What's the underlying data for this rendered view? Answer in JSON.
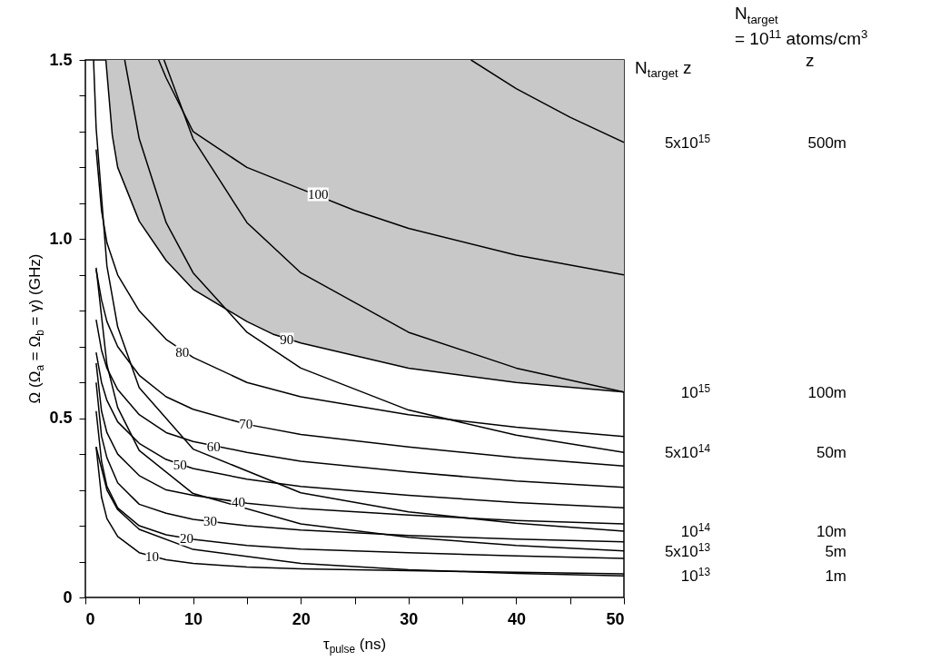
{
  "chart_data": {
    "type": "line",
    "xlabel": "τ$_{pulse}$     (ns)",
    "ylabel": "Ω  (Ω$_{a}$ = Ω$_{b}$ = γ)    (GHz)",
    "legend_title": "N$_{target}$ z",
    "xlim": [
      0,
      50
    ],
    "ylim": [
      0,
      1.5
    ],
    "xticks": [
      0,
      {
        "value": 5,
        "label": null
      },
      10,
      {
        "value": 15,
        "label": null
      },
      20,
      {
        "value": 25,
        "label": null
      },
      30,
      {
        "value": 35,
        "label": null
      },
      40,
      {
        "value": 45,
        "label": null
      },
      50
    ],
    "yticks": [
      0,
      {
        "value": 0.1,
        "label": null
      },
      {
        "value": 0.2,
        "label": null
      },
      {
        "value": 0.3,
        "label": null
      },
      {
        "value": 0.4,
        "label": null
      },
      0.5,
      {
        "value": 0.6,
        "label": null
      },
      {
        "value": 0.7,
        "label": null
      },
      {
        "value": 0.8,
        "label": null
      },
      {
        "value": 0.9,
        "label": null
      },
      {
        "value": 1,
        "label": "1.0"
      },
      {
        "value": 1.1,
        "label": null
      },
      {
        "value": 1.2,
        "label": null
      },
      {
        "value": 1.3,
        "label": null
      },
      {
        "value": 1.4,
        "label": null
      },
      1.5
    ],
    "series": [
      {
        "color": "#000000",
        "x": [
          1,
          1.5,
          2,
          3,
          5,
          7.5,
          10,
          15,
          20,
          30,
          40,
          50
        ],
        "values": [
          0.42,
          0.28,
          0.22,
          0.17,
          0.125,
          0.105,
          0.095,
          0.085,
          0.08,
          0.075,
          0.07,
          0.066
        ]
      },
      {
        "color": "#000000",
        "x": [
          1,
          1.5,
          2,
          3,
          5,
          7.5,
          10,
          15,
          20,
          30,
          40,
          50
        ],
        "values": [
          0.52,
          0.38,
          0.31,
          0.25,
          0.2,
          0.175,
          0.162,
          0.145,
          0.135,
          0.125,
          0.116,
          0.109
        ]
      },
      {
        "color": "#000000",
        "x": [
          1,
          1.5,
          2,
          3,
          5,
          7.5,
          10,
          15,
          20,
          30,
          40,
          50
        ],
        "values": [
          0.6,
          0.45,
          0.39,
          0.32,
          0.26,
          0.235,
          0.218,
          0.2,
          0.188,
          0.173,
          0.163,
          0.155
        ]
      },
      {
        "color": "#000000",
        "x": [
          1,
          1.5,
          2,
          3,
          5,
          7.5,
          10,
          15,
          20,
          30,
          40,
          50
        ],
        "values": [
          0.654,
          0.52,
          0.46,
          0.4,
          0.34,
          0.3,
          0.285,
          0.263,
          0.248,
          0.23,
          0.215,
          0.205
        ]
      },
      {
        "color": "#000000",
        "x": [
          1,
          1.5,
          2,
          3,
          5,
          7.5,
          10,
          15,
          20,
          30,
          40,
          50
        ],
        "values": [
          0.684,
          0.6,
          0.55,
          0.49,
          0.43,
          0.385,
          0.36,
          0.33,
          0.31,
          0.285,
          0.265,
          0.25
        ]
      },
      {
        "color": "#000000",
        "x": [
          1,
          1.5,
          2,
          3,
          5,
          7.5,
          10,
          15,
          20,
          30,
          40,
          50
        ],
        "values": [
          0.775,
          0.69,
          0.64,
          0.58,
          0.51,
          0.46,
          0.435,
          0.405,
          0.38,
          0.35,
          0.325,
          0.307
        ]
      },
      {
        "color": "#000000",
        "x": [
          1,
          1.5,
          2,
          3,
          5,
          7.5,
          10,
          15,
          20,
          30,
          40,
          50
        ],
        "values": [
          0.915,
          0.83,
          0.77,
          0.7,
          0.62,
          0.56,
          0.525,
          0.483,
          0.455,
          0.42,
          0.39,
          0.367
        ]
      },
      {
        "color": "#000000",
        "x": [
          1,
          1.5,
          2,
          3,
          5,
          7.5,
          10,
          15,
          20,
          30,
          40,
          50
        ],
        "values": [
          1.25,
          1.08,
          0.99,
          0.9,
          0.8,
          0.72,
          0.67,
          0.6,
          0.56,
          0.51,
          0.475,
          0.449
        ]
      },
      {
        "color": "#000000",
        "x": [
          1.9,
          2.5,
          3,
          5,
          7.5,
          10,
          15,
          17.4,
          20,
          30,
          40,
          50
        ],
        "values": [
          1.5,
          1.29,
          1.2,
          1.05,
          0.94,
          0.86,
          0.77,
          0.735,
          0.71,
          0.64,
          0.6,
          0.573
        ],
        "lower": [
          1.5,
          1.29,
          1.2,
          1.05,
          0.94,
          0.86,
          0.77,
          0.735,
          0.71,
          0.64,
          0.6,
          0.573
        ],
        "upper": [
          1.5,
          1.5,
          1.5,
          1.5,
          1.5,
          1.5,
          1.5,
          1.5,
          1.5,
          1.5,
          1.5,
          1.5
        ]
      },
      {
        "color": "#000000",
        "x": [
          6.8,
          7.5,
          10,
          15,
          20,
          25,
          30,
          40,
          50
        ],
        "values": [
          1.5,
          1.45,
          1.3,
          1.2,
          1.14,
          1.08,
          1.03,
          0.955,
          0.9
        ]
      },
      {
        "name": "10$^{13}$",
        "color": "#000000",
        "x": [
          1,
          2,
          3,
          5,
          10,
          20,
          30,
          40,
          50
        ],
        "values": [
          0.42,
          0.3,
          0.245,
          0.19,
          0.134,
          0.095,
          0.077,
          0.067,
          0.06
        ]
      },
      {
        "name": "5x10$^{13}$",
        "color": "#000000",
        "x": [
          1,
          2,
          3,
          5,
          10,
          20,
          30,
          40,
          50
        ],
        "values": [
          0.92,
          0.65,
          0.53,
          0.41,
          0.29,
          0.205,
          0.168,
          0.145,
          0.13
        ]
      },
      {
        "name": "10$^{14}$",
        "color": "#000000",
        "x": [
          0.76,
          1,
          2,
          3,
          5,
          10,
          20,
          30,
          40,
          50
        ],
        "values": [
          1.5,
          1.31,
          0.925,
          0.755,
          0.585,
          0.414,
          0.292,
          0.239,
          0.207,
          0.185
        ]
      },
      {
        "name": "5x10$^{14}$",
        "color": "#000000",
        "x": [
          3.65,
          5,
          7.5,
          10,
          15,
          20,
          30,
          40,
          50
        ],
        "values": [
          1.5,
          1.28,
          1.046,
          0.906,
          0.74,
          0.64,
          0.523,
          0.453,
          0.405
        ]
      },
      {
        "name": "10$^{15}$",
        "color": "#000000",
        "x": [
          7.3,
          10,
          15,
          20,
          30,
          40,
          50
        ],
        "values": [
          1.5,
          1.28,
          1.046,
          0.906,
          0.74,
          0.64,
          0.573
        ]
      },
      {
        "name": "5x10$^{15}$",
        "color": "#000000",
        "x": [
          35.8,
          40,
          45,
          50
        ],
        "values": [
          1.5,
          1.42,
          1.34,
          1.27
        ]
      }
    ],
    "annotations": [
      {
        "text": "10",
        "x": 6.2,
        "y": 0.114
      },
      {
        "text": "20",
        "x": 9.4,
        "y": 0.165
      },
      {
        "text": "30",
        "x": 11.6,
        "y": 0.213
      },
      {
        "text": "40",
        "x": 14.2,
        "y": 0.266
      },
      {
        "text": "50",
        "x": 8.8,
        "y": 0.37
      },
      {
        "text": "60",
        "x": 11.9,
        "y": 0.42
      },
      {
        "text": "70",
        "x": 14.9,
        "y": 0.484
      },
      {
        "text": "80",
        "x": 9,
        "y": 0.685
      },
      {
        "text": "90",
        "x": 18.7,
        "y": 0.72
      },
      {
        "text": "100",
        "x": 21.6,
        "y": 1.125
      },
      "N$_{target}$",
      "= 10$^{11}$ atoms/cm$^{3}$",
      "z",
      "1m",
      "5m",
      "10m",
      "50m",
      "100m",
      "500m"
    ]
  }
}
